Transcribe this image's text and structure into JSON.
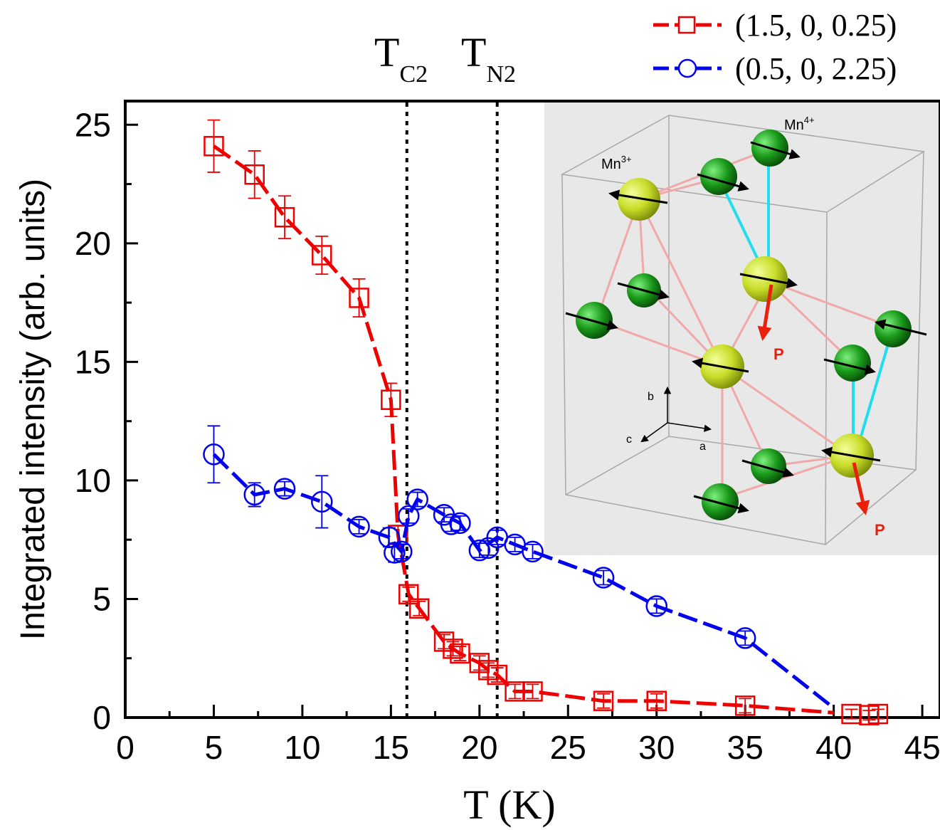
{
  "chart_data": {
    "type": "line",
    "xlabel": "T (K)",
    "ylabel": "Integrated intensity (arb. units)",
    "xlim": [
      0,
      46
    ],
    "ylim": [
      0,
      26
    ],
    "x_ticks": [
      "0",
      "5",
      "10",
      "15",
      "20",
      "25",
      "30",
      "35",
      "40",
      "45"
    ],
    "y_ticks": [
      "0",
      "5",
      "10",
      "15",
      "20",
      "25"
    ],
    "grid": false,
    "legend_placement": "top-right, outside plot",
    "vlines": [
      {
        "x": 15.9,
        "label_main": "T",
        "label_sub": "C2"
      },
      {
        "x": 21.0,
        "label_main": "T",
        "label_sub": "N2"
      }
    ],
    "series": [
      {
        "name": "(1.5, 0, 0.25)",
        "color": "#ee0000",
        "marker": "square",
        "points": [
          {
            "x": 5.0,
            "y": 24.1,
            "err": 1.1
          },
          {
            "x": 7.3,
            "y": 22.9,
            "err": 1.0
          },
          {
            "x": 9.0,
            "y": 21.1,
            "err": 0.9
          },
          {
            "x": 11.1,
            "y": 19.5,
            "err": 0.8
          },
          {
            "x": 13.2,
            "y": 17.7,
            "err": 0.8
          },
          {
            "x": 15.0,
            "y": 13.4,
            "err": 0.7
          },
          {
            "x": 15.4,
            "y": 7.7,
            "err": 0.4
          },
          {
            "x": 16.0,
            "y": 5.2,
            "err": 0.3
          },
          {
            "x": 16.6,
            "y": 4.6,
            "err": 0.3
          },
          {
            "x": 18.0,
            "y": 3.2,
            "err": 0.3
          },
          {
            "x": 18.5,
            "y": 2.9,
            "err": 0.3
          },
          {
            "x": 18.9,
            "y": 2.7,
            "err": 0.3
          },
          {
            "x": 20.0,
            "y": 2.3,
            "err": 0.3
          },
          {
            "x": 20.5,
            "y": 2.0,
            "err": 0.3
          },
          {
            "x": 21.0,
            "y": 1.8,
            "err": 0.3
          },
          {
            "x": 22.0,
            "y": 1.1,
            "err": 0.3
          },
          {
            "x": 23.0,
            "y": 1.1,
            "err": 0.3
          },
          {
            "x": 27.0,
            "y": 0.7,
            "err": 0.3
          },
          {
            "x": 30.0,
            "y": 0.7,
            "err": 0.3
          },
          {
            "x": 35.0,
            "y": 0.5,
            "err": 0.3
          },
          {
            "x": 41.0,
            "y": 0.15,
            "err": 0.2
          },
          {
            "x": 42.0,
            "y": 0.1,
            "err": 0.2
          },
          {
            "x": 42.5,
            "y": 0.15,
            "err": 0.2
          }
        ],
        "line": [
          [
            5.0,
            24.1
          ],
          [
            7.3,
            22.9
          ],
          [
            9.0,
            21.1
          ],
          [
            11.1,
            19.5
          ],
          [
            13.2,
            17.7
          ],
          [
            15.0,
            13.4
          ],
          [
            15.4,
            7.7
          ],
          [
            16.0,
            5.2
          ],
          [
            16.6,
            4.6
          ],
          [
            18.0,
            3.2
          ],
          [
            18.5,
            2.9
          ],
          [
            18.9,
            2.7
          ],
          [
            20.0,
            2.3
          ],
          [
            20.5,
            2.0
          ],
          [
            21.0,
            1.8
          ],
          [
            22.0,
            1.1
          ],
          [
            23.0,
            1.1
          ],
          [
            27.0,
            0.7
          ],
          [
            30.0,
            0.7
          ],
          [
            35.0,
            0.5
          ],
          [
            40.0,
            0.2
          ]
        ]
      },
      {
        "name": "(0.5, 0, 2.25)",
        "color": "#0000ee",
        "marker": "circle",
        "points": [
          {
            "x": 5.0,
            "y": 11.1,
            "err": 1.2
          },
          {
            "x": 7.3,
            "y": 9.4,
            "err": 0.5
          },
          {
            "x": 9.0,
            "y": 9.65,
            "err": 0.3
          },
          {
            "x": 11.1,
            "y": 9.1,
            "err": 1.1
          },
          {
            "x": 13.2,
            "y": 8.05,
            "err": 0.3
          },
          {
            "x": 14.9,
            "y": 7.6,
            "err": 0.4
          },
          {
            "x": 15.2,
            "y": 6.95,
            "err": 0.4
          },
          {
            "x": 15.6,
            "y": 7.0,
            "err": 0.3
          },
          {
            "x": 16.0,
            "y": 8.5,
            "err": 0.3
          },
          {
            "x": 16.5,
            "y": 9.2,
            "err": 0.3
          },
          {
            "x": 18.0,
            "y": 8.55,
            "err": 0.3
          },
          {
            "x": 18.4,
            "y": 8.15,
            "err": 0.3
          },
          {
            "x": 18.9,
            "y": 8.2,
            "err": 0.3
          },
          {
            "x": 20.0,
            "y": 7.05,
            "err": 0.3
          },
          {
            "x": 20.5,
            "y": 7.15,
            "err": 0.3
          },
          {
            "x": 21.0,
            "y": 7.6,
            "err": 0.3
          },
          {
            "x": 22.0,
            "y": 7.3,
            "err": 0.3
          },
          {
            "x": 23.0,
            "y": 7.0,
            "err": 0.3
          },
          {
            "x": 27.0,
            "y": 5.9,
            "err": 0.3
          },
          {
            "x": 30.0,
            "y": 4.7,
            "err": 0.3
          },
          {
            "x": 35.0,
            "y": 3.35,
            "err": 0.3
          }
        ],
        "line": [
          [
            5.0,
            11.1
          ],
          [
            7.3,
            9.4
          ],
          [
            9.0,
            9.65
          ],
          [
            11.1,
            9.1
          ],
          [
            13.2,
            8.05
          ],
          [
            14.9,
            7.6
          ],
          [
            15.6,
            7.0
          ],
          [
            16.0,
            8.5
          ],
          [
            16.5,
            9.2
          ],
          [
            18.0,
            8.55
          ],
          [
            18.9,
            8.2
          ],
          [
            20.0,
            7.05
          ],
          [
            21.0,
            7.6
          ],
          [
            22.0,
            7.3
          ],
          [
            23.0,
            7.0
          ],
          [
            27.0,
            5.9
          ],
          [
            30.0,
            4.7
          ],
          [
            35.0,
            3.35
          ],
          [
            40.0,
            0.4
          ]
        ]
      }
    ],
    "inset": {
      "description_labels": {
        "mn3": "Mn",
        "mn3_sup": "3+",
        "mn4": "Mn",
        "mn4_sup": "4+",
        "polarization_1": "P",
        "polarization_2": "P",
        "axis_a": "a",
        "axis_b": "b",
        "axis_c": "c"
      },
      "colors": {
        "background": "#e8e8e8",
        "mn3_sphere": "#c8dc28",
        "mn4_sphere": "#1a9a1a",
        "bond": "#f0a8a8",
        "cyan_bond": "#22ddee",
        "spin_arrow": "#000000",
        "polarization_arrow": "#e8200c"
      }
    }
  }
}
